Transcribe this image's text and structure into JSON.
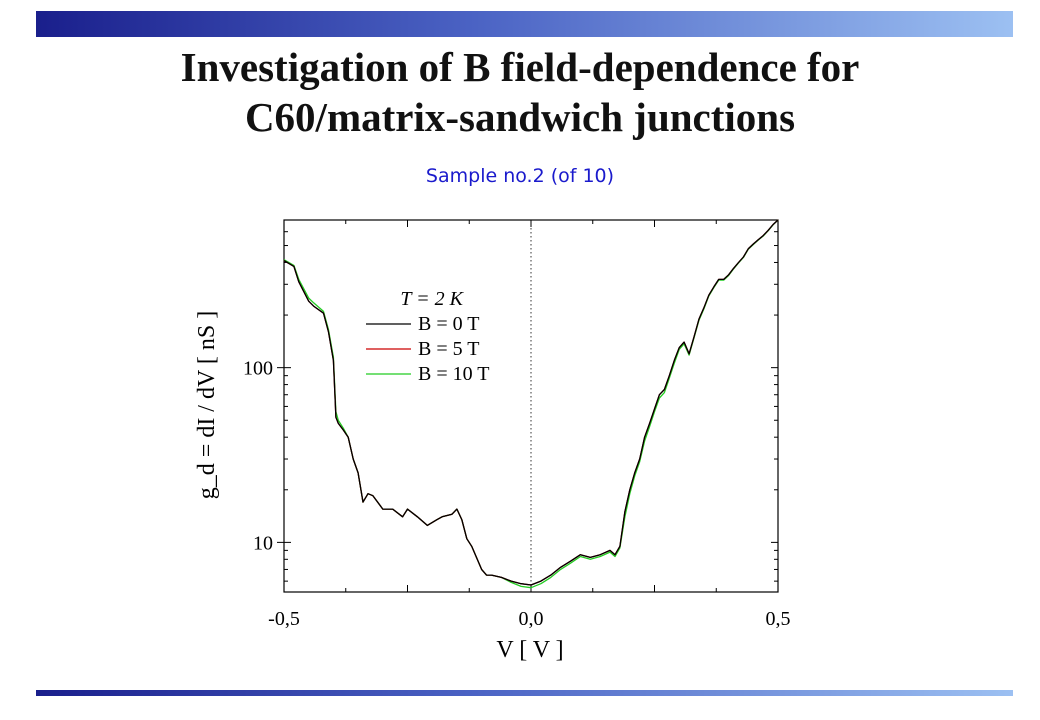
{
  "slide": {
    "title_line1": "Investigation of B field-dependence for",
    "title_line2": "C60/matrix-sandwich junctions",
    "subtitle": "Sample no.2 (of 10)",
    "accent_color": "#1a1f8c",
    "subtitle_color": "#1a1acc"
  },
  "chart_data": {
    "type": "line",
    "title": "",
    "xlabel": "V  [ V ]",
    "ylabel": "g_d = dI / dV  [ nS ]",
    "yscale": "log",
    "xlim": [
      -0.5,
      0.5
    ],
    "ylim": [
      5.2,
      700
    ],
    "x_tick_labels": [
      "-0,5",
      "0,0",
      "0,5"
    ],
    "y_tick_labels": [
      "10",
      "100"
    ],
    "reference_line": {
      "x": 0.0,
      "style": "dotted"
    },
    "legend": {
      "placement": "upper-left-center",
      "header": "T =   2 K",
      "entries": [
        "B =   0 T",
        "B =   5 T",
        "B = 10 T"
      ]
    },
    "series": [
      {
        "name": "B = 0 T",
        "color": "#000000"
      },
      {
        "name": "B = 5 T",
        "color": "#cc0000"
      },
      {
        "name": "B = 10 T",
        "color": "#22cc22"
      }
    ],
    "x": [
      -0.5,
      -0.48,
      -0.47,
      -0.45,
      -0.44,
      -0.42,
      -0.41,
      -0.4,
      -0.395,
      -0.39,
      -0.38,
      -0.37,
      -0.36,
      -0.35,
      -0.34,
      -0.33,
      -0.32,
      -0.3,
      -0.28,
      -0.26,
      -0.25,
      -0.23,
      -0.21,
      -0.19,
      -0.18,
      -0.16,
      -0.15,
      -0.14,
      -0.13,
      -0.12,
      -0.1,
      -0.09,
      -0.08,
      -0.06,
      -0.04,
      -0.02,
      0.0,
      0.02,
      0.04,
      0.06,
      0.08,
      0.1,
      0.12,
      0.14,
      0.16,
      0.17,
      0.18,
      0.19,
      0.2,
      0.21,
      0.22,
      0.23,
      0.24,
      0.25,
      0.26,
      0.27,
      0.28,
      0.29,
      0.3,
      0.31,
      0.32,
      0.33,
      0.34,
      0.35,
      0.36,
      0.37,
      0.38,
      0.39,
      0.4,
      0.41,
      0.42,
      0.43,
      0.44,
      0.45,
      0.46,
      0.47,
      0.48,
      0.49,
      0.5
    ],
    "y_0T": [
      410,
      380,
      310,
      240,
      225,
      205,
      160,
      110,
      52,
      48,
      44,
      40,
      30,
      25,
      17,
      19,
      18.5,
      15.5,
      15.5,
      14,
      15.5,
      14,
      12.5,
      13.5,
      14,
      14.5,
      15.5,
      13.5,
      10.5,
      9.5,
      7,
      6.5,
      6.5,
      6.3,
      6.0,
      5.8,
      5.7,
      6.0,
      6.5,
      7.2,
      7.8,
      8.5,
      8.2,
      8.5,
      9.0,
      8.5,
      9.5,
      15,
      20,
      25,
      30,
      40,
      48,
      58,
      70,
      75,
      90,
      110,
      130,
      140,
      120,
      150,
      190,
      220,
      260,
      290,
      320,
      320,
      340,
      370,
      400,
      430,
      480,
      510,
      540,
      570,
      610,
      660,
      700
    ],
    "y_5T": [
      410,
      380,
      310,
      240,
      225,
      205,
      160,
      110,
      52,
      48,
      44,
      40,
      30,
      25,
      17,
      19,
      18.5,
      15.5,
      15.5,
      14,
      15.5,
      14,
      12.5,
      13.5,
      14,
      14.5,
      15.5,
      13.5,
      10.5,
      9.5,
      7,
      6.5,
      6.5,
      6.3,
      6.0,
      5.8,
      5.7,
      6.0,
      6.5,
      7.2,
      7.8,
      8.5,
      8.2,
      8.5,
      9.0,
      8.5,
      9.5,
      15,
      20,
      25,
      30,
      40,
      48,
      58,
      70,
      75,
      90,
      110,
      130,
      140,
      120,
      150,
      190,
      220,
      260,
      290,
      320,
      320,
      340,
      370,
      400,
      430,
      480,
      510,
      540,
      570,
      610,
      660,
      700
    ],
    "y_10T": [
      415,
      385,
      320,
      250,
      235,
      210,
      165,
      115,
      56,
      50,
      45,
      40,
      30,
      25,
      17,
      19,
      18.5,
      15.5,
      15.5,
      14,
      15.5,
      14,
      12.5,
      13.5,
      14,
      14.5,
      15.5,
      13.5,
      10.5,
      9.5,
      7,
      6.5,
      6.5,
      6.3,
      5.9,
      5.6,
      5.5,
      5.8,
      6.3,
      7.0,
      7.6,
      8.3,
      8.0,
      8.3,
      8.8,
      8.3,
      9.3,
      14,
      19,
      24,
      29,
      38,
      46,
      56,
      67,
      72,
      87,
      106,
      127,
      137,
      118,
      148,
      187,
      217,
      257,
      287,
      317,
      317,
      337,
      367,
      397,
      427,
      477,
      507,
      537,
      567,
      607,
      657,
      700
    ]
  }
}
